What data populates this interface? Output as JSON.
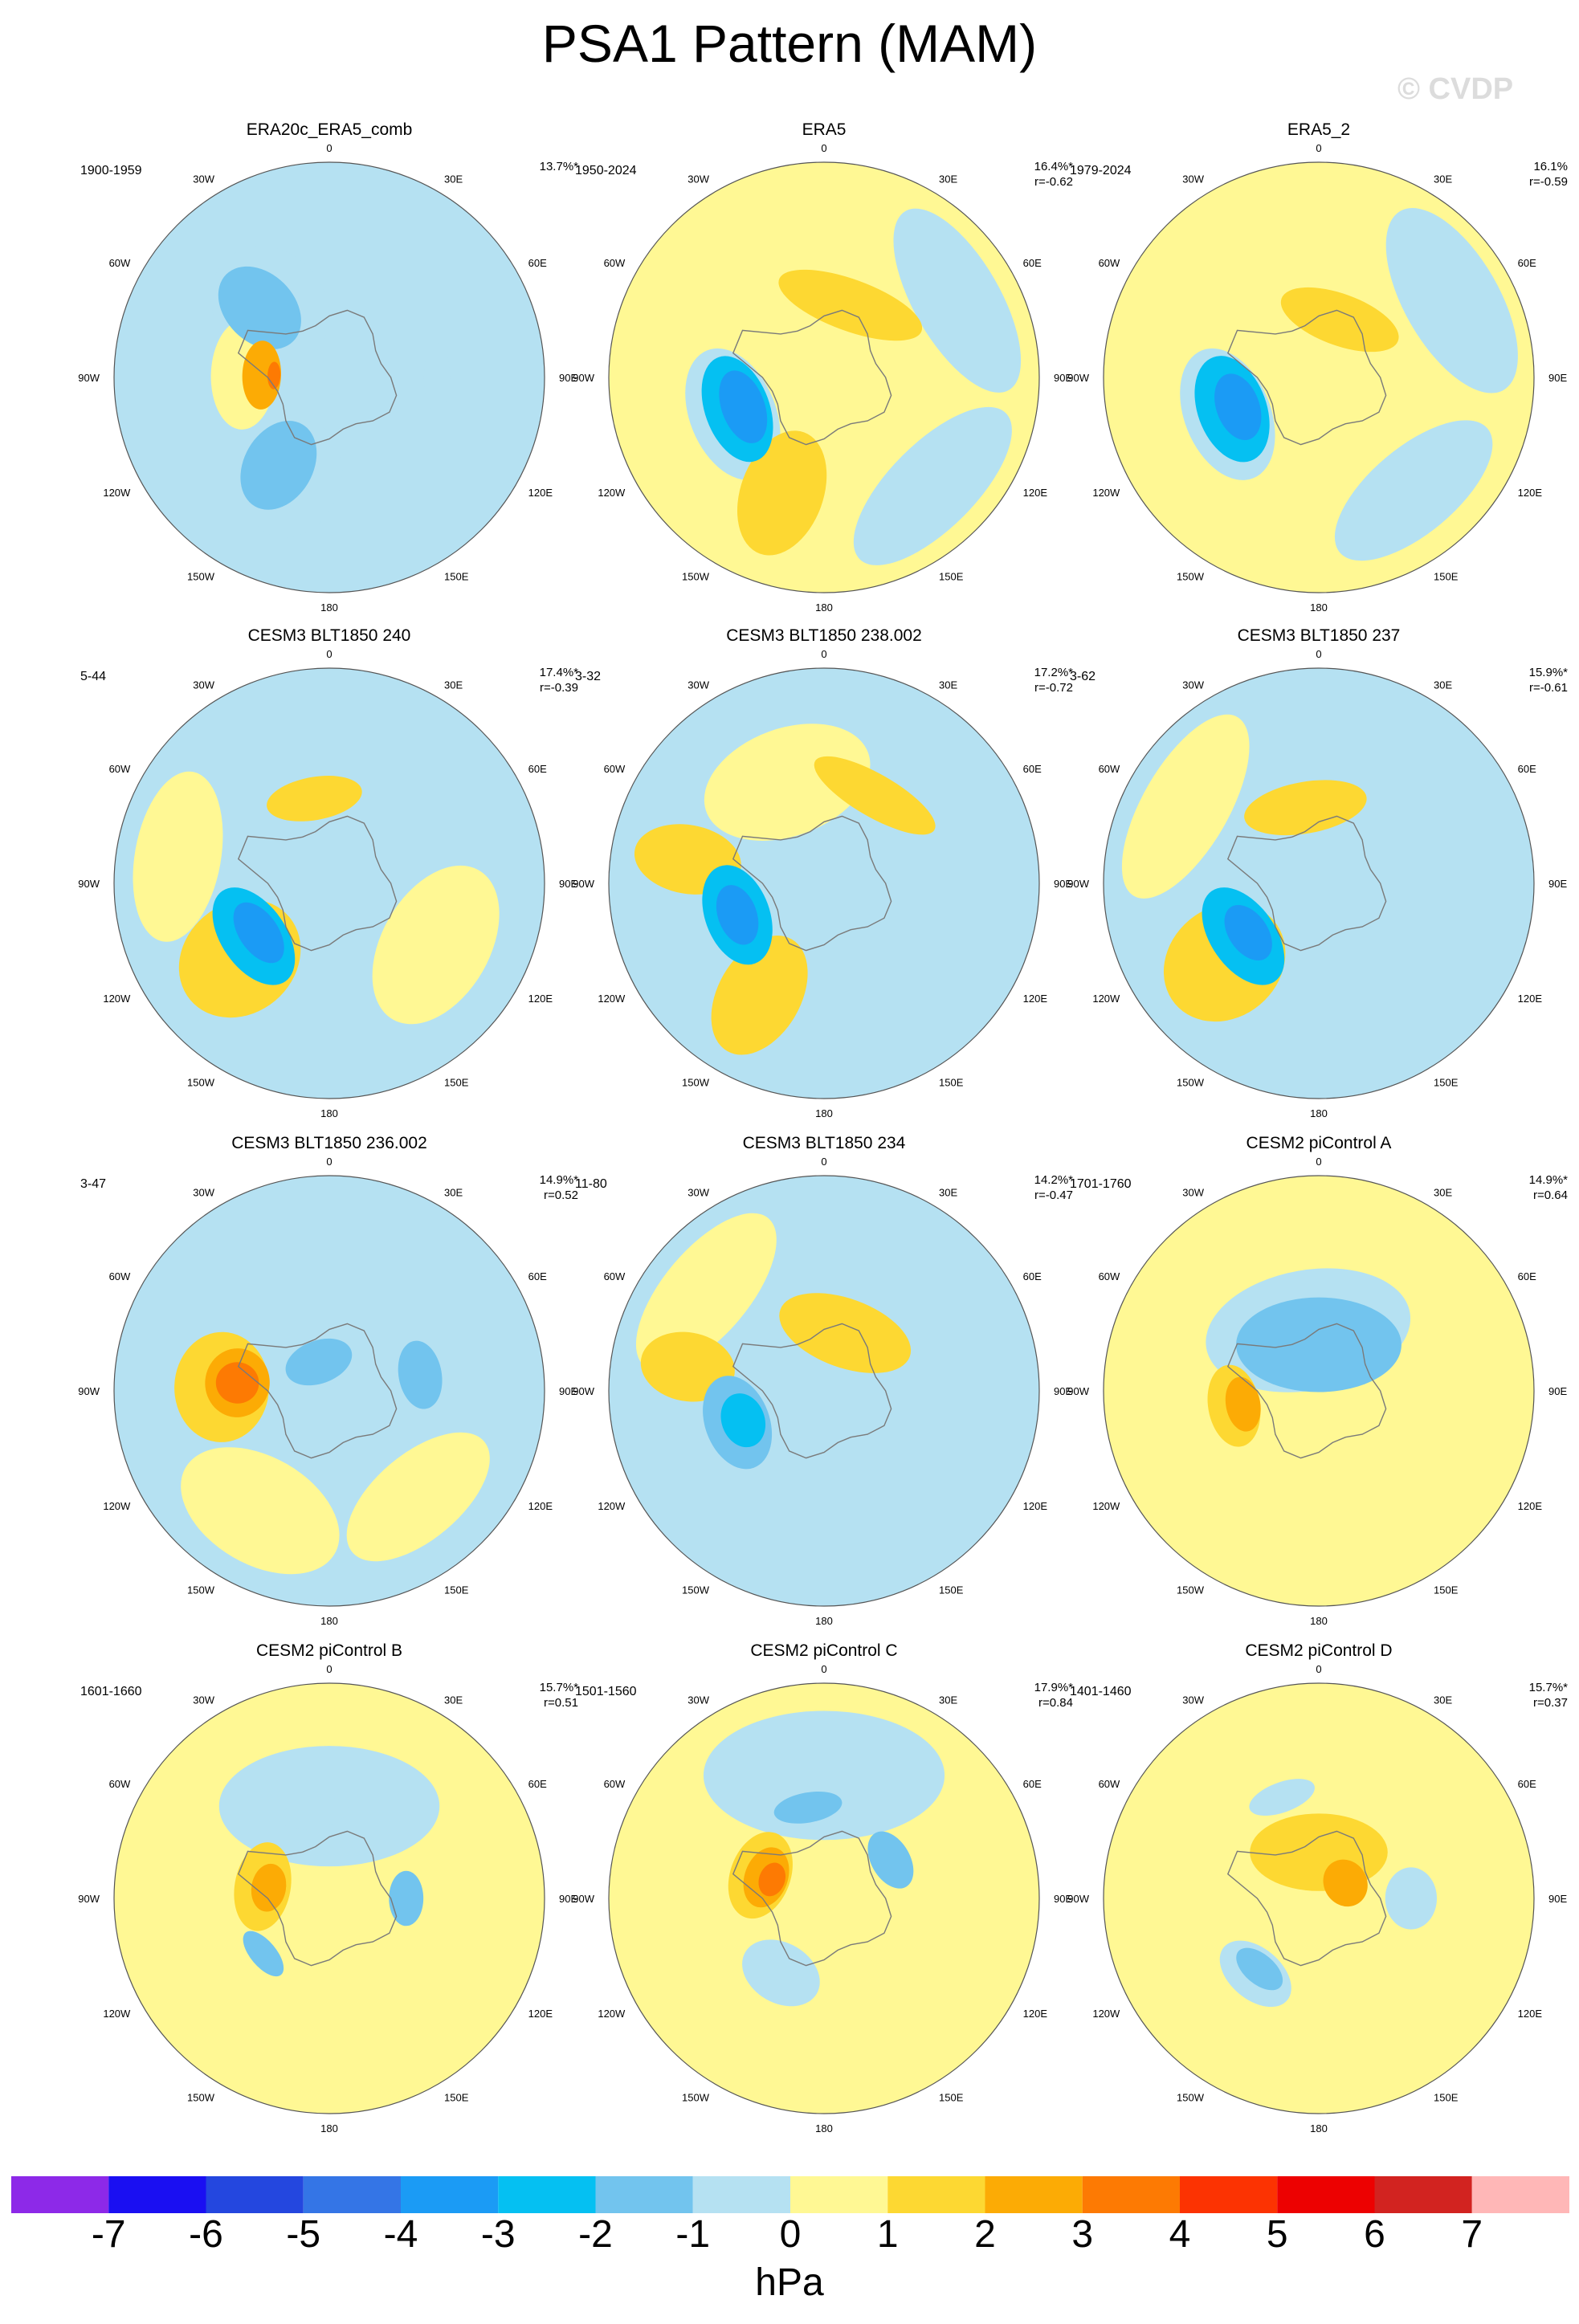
{
  "title": "PSA1 Pattern (MAM)",
  "watermark": "© CVDP",
  "colorbar": {
    "units": "hPa",
    "ticks": [
      "-7",
      "-6",
      "-5",
      "-4",
      "-3",
      "-2",
      "-1",
      "0",
      "1",
      "2",
      "3",
      "4",
      "5",
      "6",
      "7"
    ],
    "colors": [
      "#8d29e8",
      "#1a0ff2",
      "#2447df",
      "#3475e6",
      "#1b9bf5",
      "#05c0f2",
      "#72c4ee",
      "#b5e1f2",
      "#fff894",
      "#fdd832",
      "#fcab05",
      "#fd7a03",
      "#fc3302",
      "#ed0101",
      "#d22320",
      "#ffb7b7"
    ]
  },
  "chart_data": [
    {
      "type": "heatmap",
      "title": "ERA20c_ERA5_comb",
      "years": "1900-1959",
      "pct": "13.7%*",
      "r": "",
      "background": -1,
      "blobs": [
        {
          "lon": -45,
          "lat": -58,
          "sx": 0.1,
          "sy": 0.22,
          "v": -2
        },
        {
          "lon": -88,
          "lat": -72,
          "sx": 0.04,
          "sy": 0.03,
          "v": 3
        },
        {
          "lon": -88,
          "lat": -68,
          "sx": 0.1,
          "sy": 0.09,
          "v": 2
        },
        {
          "lon": -88,
          "lat": -62,
          "sx": 0.16,
          "sy": 0.15,
          "v": 0
        },
        {
          "lon": -150,
          "lat": -57,
          "sx": 0.1,
          "sy": 0.22,
          "v": -2
        },
        {
          "lon": 90,
          "lat": -55,
          "sx": 0.1,
          "sy": 0.06,
          "v": -1
        },
        {
          "lon": -40,
          "lat": -60,
          "sx": 0.16,
          "sy": 0.3,
          "v": -1
        },
        {
          "lon": -160,
          "lat": -55,
          "sx": 0.14,
          "sy": 0.28,
          "v": -1
        }
      ],
      "fringe": [
        0,
        1
      ]
    },
    {
      "type": "heatmap",
      "title": "ERA5",
      "years": "1950-2024",
      "pct": "16.4%*",
      "r": "r=-0.62",
      "background": 0,
      "blobs": [
        {
          "lon": -110,
          "lat": -62,
          "sx": 0.11,
          "sy": 0.1,
          "v": -4
        },
        {
          "lon": -110,
          "lat": -60,
          "sx": 0.16,
          "sy": 0.15,
          "v": -3
        },
        {
          "lon": -112,
          "lat": -58,
          "sx": 0.2,
          "sy": 0.2,
          "v": -1
        },
        {
          "lon": 20,
          "lat": -65,
          "sx": 0.22,
          "sy": 0.12,
          "v": 1
        },
        {
          "lon": -160,
          "lat": -50,
          "sx": 0.12,
          "sy": 0.3,
          "v": 1
        },
        {
          "lon": 60,
          "lat": -40,
          "sx": 0.3,
          "sy": 0.2,
          "v": -1
        },
        {
          "lon": 135,
          "lat": -40,
          "sx": 0.3,
          "sy": 0.2,
          "v": -1
        }
      ],
      "fringe": [
        0,
        1
      ]
    },
    {
      "type": "heatmap",
      "title": "ERA5_2",
      "years": "1979-2024",
      "pct": "16.1%",
      "r": "r=-0.59",
      "background": 0,
      "blobs": [
        {
          "lon": -110,
          "lat": -62,
          "sx": 0.1,
          "sy": 0.1,
          "v": -4
        },
        {
          "lon": -110,
          "lat": -60,
          "sx": 0.16,
          "sy": 0.16,
          "v": -3
        },
        {
          "lon": -112,
          "lat": -58,
          "sx": 0.2,
          "sy": 0.2,
          "v": -1
        },
        {
          "lon": 20,
          "lat": -70,
          "sx": 0.18,
          "sy": 0.12,
          "v": 1
        },
        {
          "lon": 60,
          "lat": -40,
          "sx": 0.3,
          "sy": 0.22,
          "v": -1
        },
        {
          "lon": 140,
          "lat": -42,
          "sx": 0.28,
          "sy": 0.2,
          "v": -1
        }
      ],
      "fringe": [
        0,
        1
      ]
    },
    {
      "type": "heatmap",
      "title": "CESM3 BLT1850 240",
      "years": "5-44",
      "pct": "17.4%*",
      "r": "r=-0.39",
      "background": -1,
      "blobs": [
        {
          "lon": -125,
          "lat": -62,
          "sx": 0.1,
          "sy": 0.09,
          "v": -4
        },
        {
          "lon": -125,
          "lat": -60,
          "sx": 0.16,
          "sy": 0.15,
          "v": -3
        },
        {
          "lon": -130,
          "lat": -52,
          "sx": 0.16,
          "sy": 0.3,
          "v": 1
        },
        {
          "lon": -10,
          "lat": -62,
          "sx": 0.14,
          "sy": 0.1,
          "v": 1
        },
        {
          "lon": -80,
          "lat": -40,
          "sx": 0.25,
          "sy": 0.2,
          "v": 0
        },
        {
          "lon": 120,
          "lat": -50,
          "sx": 0.25,
          "sy": 0.25,
          "v": 0
        }
      ],
      "fringe": [
        0,
        1
      ]
    },
    {
      "type": "heatmap",
      "title": "CESM3 BLT1850 238.002",
      "years": "3-32",
      "pct": "17.2%*",
      "r": "r=-0.72",
      "background": -1,
      "blobs": [
        {
          "lon": -110,
          "lat": -60,
          "sx": 0.09,
          "sy": 0.09,
          "v": -4
        },
        {
          "lon": -110,
          "lat": -60,
          "sx": 0.15,
          "sy": 0.15,
          "v": -3
        },
        {
          "lon": 30,
          "lat": -57,
          "sx": 0.2,
          "sy": 0.1,
          "v": 1
        },
        {
          "lon": -150,
          "lat": -48,
          "sx": 0.12,
          "sy": 0.3,
          "v": 1
        },
        {
          "lon": -80,
          "lat": -45,
          "sx": 0.1,
          "sy": 0.25,
          "v": 1
        },
        {
          "lon": -20,
          "lat": -55,
          "sx": 0.25,
          "sy": 0.25,
          "v": 0
        }
      ],
      "fringe": [
        0,
        1
      ]
    },
    {
      "type": "heatmap",
      "title": "CESM3 BLT1850 237",
      "years": "3-62",
      "pct": "15.9%*",
      "r": "r=-0.61",
      "background": -1,
      "blobs": [
        {
          "lon": -125,
          "lat": -62,
          "sx": 0.09,
          "sy": 0.09,
          "v": -4
        },
        {
          "lon": -125,
          "lat": -60,
          "sx": 0.16,
          "sy": 0.15,
          "v": -3
        },
        {
          "lon": -10,
          "lat": -65,
          "sx": 0.18,
          "sy": 0.12,
          "v": 1
        },
        {
          "lon": -130,
          "lat": -50,
          "sx": 0.16,
          "sy": 0.3,
          "v": 1
        },
        {
          "lon": -60,
          "lat": -40,
          "sx": 0.3,
          "sy": 0.2,
          "v": 0
        }
      ],
      "fringe": [
        0,
        1
      ]
    },
    {
      "type": "heatmap",
      "title": "CESM3 BLT1850 236.002",
      "years": "3-47",
      "pct": "14.9%*",
      "r": "r=0.52",
      "background": -1,
      "blobs": [
        {
          "lon": -85,
          "lat": -60,
          "sx": 0.06,
          "sy": 0.1,
          "v": 3
        },
        {
          "lon": -85,
          "lat": -60,
          "sx": 0.1,
          "sy": 0.15,
          "v": 2
        },
        {
          "lon": -88,
          "lat": -55,
          "sx": 0.16,
          "sy": 0.22,
          "v": 1
        },
        {
          "lon": 80,
          "lat": -60,
          "sx": 0.1,
          "sy": 0.1,
          "v": -2
        },
        {
          "lon": -20,
          "lat": -80,
          "sx": 0.1,
          "sy": 0.1,
          "v": -2
        },
        {
          "lon": -150,
          "lat": -45,
          "sx": 0.25,
          "sy": 0.25,
          "v": 0
        },
        {
          "lon": 140,
          "lat": -45,
          "sx": 0.25,
          "sy": 0.2,
          "v": 0
        }
      ],
      "fringe": [
        0,
        1
      ]
    },
    {
      "type": "heatmap",
      "title": "CESM3 BLT1850 234",
      "years": "11-80",
      "pct": "14.2%*",
      "r": "r=-0.47",
      "background": -1,
      "blobs": [
        {
          "lon": -110,
          "lat": -62,
          "sx": 0.08,
          "sy": 0.1,
          "v": -3
        },
        {
          "lon": -110,
          "lat": -60,
          "sx": 0.14,
          "sy": 0.15,
          "v": -2
        },
        {
          "lon": 20,
          "lat": -70,
          "sx": 0.2,
          "sy": 0.16,
          "v": 1
        },
        {
          "lon": -80,
          "lat": -45,
          "sx": 0.1,
          "sy": 0.22,
          "v": 1
        },
        {
          "lon": -50,
          "lat": -40,
          "sx": 0.28,
          "sy": 0.2,
          "v": 0
        }
      ],
      "fringe": [
        0,
        1
      ]
    },
    {
      "type": "heatmap",
      "title": "CESM2 piControl A",
      "years": "1701-1760",
      "pct": "14.9%*",
      "r": "r=0.64",
      "background": 0,
      "blobs": [
        {
          "lon": -100,
          "lat": -65,
          "sx": 0.08,
          "sy": 0.08,
          "v": 2
        },
        {
          "lon": -100,
          "lat": -62,
          "sx": 0.12,
          "sy": 0.12,
          "v": 1
        },
        {
          "lon": 0,
          "lat": -75,
          "sx": 0.24,
          "sy": 0.22,
          "v": -2
        },
        {
          "lon": -10,
          "lat": -70,
          "sx": 0.3,
          "sy": 0.28,
          "v": -1
        }
      ],
      "fringe": [
        0,
        1
      ]
    },
    {
      "type": "heatmap",
      "title": "CESM2 piControl B",
      "years": "1601-1660",
      "pct": "15.7%*",
      "r": "r=0.51",
      "background": 0,
      "blobs": [
        {
          "lon": -80,
          "lat": -70,
          "sx": 0.07,
          "sy": 0.08,
          "v": 2
        },
        {
          "lon": -80,
          "lat": -68,
          "sx": 0.13,
          "sy": 0.13,
          "v": 1
        },
        {
          "lon": -130,
          "lat": -62,
          "sx": 0.08,
          "sy": 0.06,
          "v": -2
        },
        {
          "lon": 90,
          "lat": -65,
          "sx": 0.08,
          "sy": 0.08,
          "v": -2
        },
        {
          "lon": -10,
          "lat": -62,
          "sx": 0.1,
          "sy": 0.07,
          "v": -1
        },
        {
          "lon": 0,
          "lat": -60,
          "sx": 0.32,
          "sy": 0.28,
          "v": -1
        }
      ],
      "fringe": [
        0,
        1
      ]
    },
    {
      "type": "heatmap",
      "title": "CESM2 piControl C",
      "years": "1501-1560",
      "pct": "17.9%*",
      "r": "r=0.84",
      "background": 0,
      "blobs": [
        {
          "lon": -70,
          "lat": -72,
          "sx": 0.05,
          "sy": 0.06,
          "v": 3
        },
        {
          "lon": -70,
          "lat": -70,
          "sx": 0.09,
          "sy": 0.1,
          "v": 2
        },
        {
          "lon": -70,
          "lat": -68,
          "sx": 0.13,
          "sy": 0.14,
          "v": 1
        },
        {
          "lon": -10,
          "lat": -60,
          "sx": 0.1,
          "sy": 0.07,
          "v": -2
        },
        {
          "lon": 60,
          "lat": -65,
          "sx": 0.09,
          "sy": 0.09,
          "v": -2
        },
        {
          "lon": -150,
          "lat": -62,
          "sx": 0.12,
          "sy": 0.14,
          "v": -1
        },
        {
          "lon": 0,
          "lat": -50,
          "sx": 0.35,
          "sy": 0.3,
          "v": -1
        }
      ],
      "fringe": [
        0,
        1
      ]
    },
    {
      "type": "heatmap",
      "title": "CESM2 piControl D",
      "years": "1401-1460",
      "pct": "15.7%*",
      "r": "r=0.37",
      "background": 0,
      "blobs": [
        {
          "lon": -140,
          "lat": -60,
          "sx": 0.08,
          "sy": 0.07,
          "v": -2
        },
        {
          "lon": -140,
          "lat": -58,
          "sx": 0.12,
          "sy": 0.12,
          "v": -1
        },
        {
          "lon": 90,
          "lat": -60,
          "sx": 0.09,
          "sy": 0.12,
          "v": -1
        },
        {
          "lon": -20,
          "lat": -55,
          "sx": 0.1,
          "sy": 0.07,
          "v": -1
        },
        {
          "lon": 60,
          "lat": -80,
          "sx": 0.07,
          "sy": 0.1,
          "v": 2
        },
        {
          "lon": 0,
          "lat": -75,
          "sx": 0.2,
          "sy": 0.18,
          "v": 1
        }
      ],
      "fringe": [
        0,
        1
      ]
    }
  ],
  "map_labels": {
    "lon_ticks": [
      {
        "lon": 0,
        "text": "0"
      },
      {
        "lon": 30,
        "text": "30E"
      },
      {
        "lon": 60,
        "text": "60E"
      },
      {
        "lon": 90,
        "text": "90E"
      },
      {
        "lon": 120,
        "text": "120E"
      },
      {
        "lon": 150,
        "text": "150E"
      },
      {
        "lon": 180,
        "text": "180"
      },
      {
        "lon": -150,
        "text": "150W"
      },
      {
        "lon": -120,
        "text": "120W"
      },
      {
        "lon": -90,
        "text": "90W"
      },
      {
        "lon": -60,
        "text": "60W"
      },
      {
        "lon": -30,
        "text": "30W"
      }
    ]
  }
}
